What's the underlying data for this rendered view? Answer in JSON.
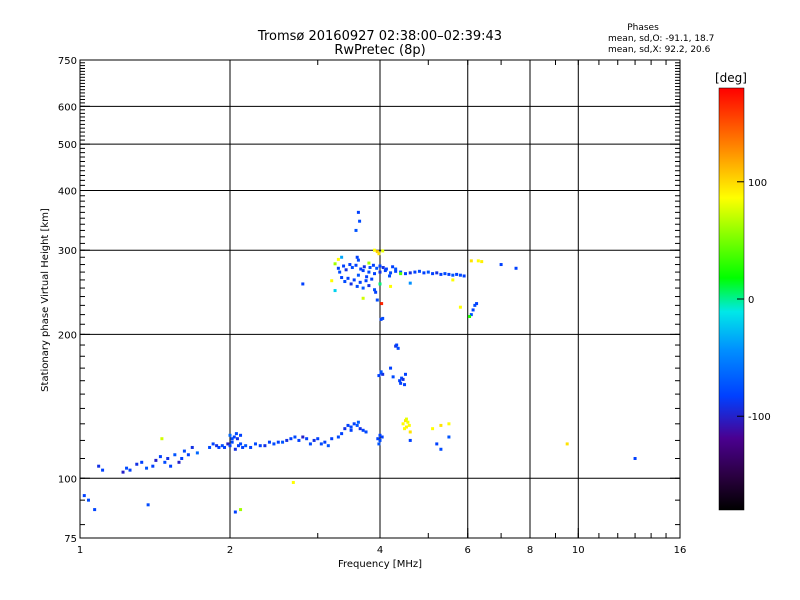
{
  "header": {
    "title_line1": "Tromsø 20160927 02:38:00–02:39:43",
    "title_line2": "RwPretec (8p)",
    "stats_title": "Phases",
    "stats_o": "mean, sd,O: -91.1, 18.7",
    "stats_x": "mean, sd,X:  92.2, 20.6"
  },
  "colorbar": {
    "label": "[deg]",
    "ticks": [
      {
        "v": 100,
        "label": "100"
      },
      {
        "v": 0,
        "label": "0"
      },
      {
        "v": -100,
        "label": "-100"
      }
    ],
    "range": [
      -180,
      180
    ]
  },
  "chart_data": {
    "type": "scatter",
    "title": "Tromsø 20160927 02:38:00–02:39:43",
    "subtitle": "RwPretec (8p)",
    "xlabel": "Frequency [MHz]",
    "ylabel": "Stationary phase Virtual Height [km]",
    "xscale": "log",
    "yscale": "log",
    "xlim": [
      1,
      16
    ],
    "ylim": [
      75,
      750
    ],
    "xticks": [
      {
        "v": 1,
        "label": "1"
      },
      {
        "v": 2,
        "label": "2"
      },
      {
        "v": 4,
        "label": "4"
      },
      {
        "v": 6,
        "label": "6"
      },
      {
        "v": 8,
        "label": "8"
      },
      {
        "v": 10,
        "label": "10"
      },
      {
        "v": 16,
        "label": "16"
      }
    ],
    "yticks": [
      {
        "v": 75,
        "label": "75"
      },
      {
        "v": 100,
        "label": "100"
      },
      {
        "v": 200,
        "label": "200"
      },
      {
        "v": 300,
        "label": "300"
      },
      {
        "v": 400,
        "label": "400"
      },
      {
        "v": 500,
        "label": "500"
      },
      {
        "v": 600,
        "label": "600"
      },
      {
        "v": 750,
        "label": "750"
      }
    ],
    "grid_x": [
      2,
      4,
      6,
      8,
      10
    ],
    "grid_y": [
      100,
      200,
      300,
      400,
      500,
      600
    ],
    "color_key": "phase [deg]",
    "points": [
      [
        1.02,
        92,
        -100
      ],
      [
        1.04,
        90,
        -95
      ],
      [
        1.07,
        86,
        -98
      ],
      [
        1.09,
        106,
        -105
      ],
      [
        1.11,
        104,
        -100
      ],
      [
        1.22,
        103,
        -110
      ],
      [
        1.24,
        105,
        -95
      ],
      [
        1.26,
        104,
        -100
      ],
      [
        1.3,
        107,
        -105
      ],
      [
        1.33,
        108,
        -100
      ],
      [
        1.36,
        105,
        -90
      ],
      [
        1.37,
        88,
        -95
      ],
      [
        1.4,
        106,
        -100
      ],
      [
        1.42,
        109,
        -110
      ],
      [
        1.45,
        111,
        -100
      ],
      [
        1.48,
        108,
        -95
      ],
      [
        1.5,
        110,
        -105
      ],
      [
        1.52,
        106,
        -100
      ],
      [
        1.55,
        112,
        -90
      ],
      [
        1.58,
        108,
        -110
      ],
      [
        1.6,
        110,
        -100
      ],
      [
        1.62,
        114,
        -95
      ],
      [
        1.65,
        112,
        -100
      ],
      [
        1.68,
        116,
        -105
      ],
      [
        1.72,
        113,
        -80
      ],
      [
        1.46,
        121,
        80
      ],
      [
        1.82,
        116,
        -95
      ],
      [
        1.85,
        118,
        -100
      ],
      [
        1.88,
        117,
        -105
      ],
      [
        1.9,
        116,
        -100
      ],
      [
        1.93,
        117,
        -95
      ],
      [
        1.95,
        116,
        -100
      ],
      [
        1.98,
        118,
        -110
      ],
      [
        2.0,
        117,
        -100
      ],
      [
        2.02,
        119,
        -95
      ],
      [
        2.05,
        115,
        -105
      ],
      [
        2.08,
        117,
        -100
      ],
      [
        2.1,
        118,
        -95
      ],
      [
        2.12,
        116,
        -100
      ],
      [
        2.15,
        117,
        -90
      ],
      [
        2.02,
        121,
        -95
      ],
      [
        2.04,
        122,
        -100
      ],
      [
        2.07,
        121,
        -105
      ],
      [
        2.1,
        123,
        -100
      ],
      [
        2.06,
        124,
        -95
      ],
      [
        2.0,
        123,
        -80
      ],
      [
        2.2,
        116,
        -100
      ],
      [
        2.25,
        118,
        -95
      ],
      [
        2.3,
        117,
        -100
      ],
      [
        2.35,
        117,
        -105
      ],
      [
        2.4,
        119,
        -100
      ],
      [
        2.45,
        118,
        -95
      ],
      [
        2.5,
        119,
        -100
      ],
      [
        2.55,
        119,
        -90
      ],
      [
        2.6,
        120,
        -105
      ],
      [
        2.65,
        121,
        -100
      ],
      [
        2.7,
        122,
        -95
      ],
      [
        2.75,
        120,
        -100
      ],
      [
        2.8,
        122,
        -110
      ],
      [
        2.85,
        121,
        -100
      ],
      [
        2.9,
        118,
        -95
      ],
      [
        2.95,
        120,
        -105
      ],
      [
        3.0,
        121,
        -100
      ],
      [
        3.05,
        118,
        -95
      ],
      [
        3.1,
        119,
        -100
      ],
      [
        3.15,
        117,
        -90
      ],
      [
        3.2,
        121,
        -100
      ],
      [
        3.3,
        122,
        -95
      ],
      [
        3.35,
        124,
        -100
      ],
      [
        3.4,
        127,
        -105
      ],
      [
        3.45,
        129,
        -100
      ],
      [
        3.5,
        128,
        -95
      ],
      [
        3.55,
        130,
        -100
      ],
      [
        3.6,
        129,
        -90
      ],
      [
        3.65,
        127,
        -105
      ],
      [
        3.7,
        126,
        -100
      ],
      [
        3.75,
        125,
        -95
      ],
      [
        3.62,
        131,
        -85
      ],
      [
        3.5,
        126,
        -100
      ],
      [
        2.05,
        85,
        -100
      ],
      [
        2.1,
        86,
        60
      ],
      [
        2.68,
        98,
        100
      ],
      [
        3.96,
        121,
        -100
      ],
      [
        4.0,
        120,
        -95
      ],
      [
        4.04,
        122,
        -100
      ],
      [
        3.98,
        118,
        -90
      ],
      [
        4.0,
        123,
        -100
      ],
      [
        3.98,
        164,
        -100
      ],
      [
        4.02,
        166,
        -95
      ],
      [
        4.05,
        165,
        -105
      ],
      [
        4.02,
        167,
        -90
      ],
      [
        4.3,
        189,
        -105
      ],
      [
        4.32,
        190,
        -100
      ],
      [
        4.35,
        187,
        -95
      ],
      [
        4.38,
        160,
        -100
      ],
      [
        4.42,
        162,
        -95
      ],
      [
        4.4,
        158,
        -100
      ],
      [
        4.45,
        161,
        -105
      ],
      [
        4.48,
        157,
        -100
      ],
      [
        4.25,
        163,
        -95
      ],
      [
        4.5,
        165,
        -100
      ],
      [
        4.02,
        215,
        -100
      ],
      [
        4.05,
        216,
        -95
      ],
      [
        4.03,
        232,
        170
      ],
      [
        4.2,
        170,
        -100
      ],
      [
        4.45,
        130,
        100
      ],
      [
        4.5,
        132,
        110
      ],
      [
        4.52,
        128,
        105
      ],
      [
        4.55,
        131,
        95
      ],
      [
        4.48,
        127,
        100
      ],
      [
        4.58,
        129,
        100
      ],
      [
        4.6,
        125,
        110
      ],
      [
        4.52,
        133,
        90
      ],
      [
        4.6,
        120,
        -100
      ],
      [
        5.1,
        127,
        100
      ],
      [
        5.3,
        129,
        110
      ],
      [
        5.5,
        130,
        100
      ],
      [
        5.2,
        118,
        -100
      ],
      [
        5.3,
        115,
        -95
      ],
      [
        5.5,
        122,
        -90
      ],
      [
        3.7,
        272,
        -100
      ],
      [
        3.8,
        270,
        -95
      ],
      [
        3.9,
        268,
        -100
      ],
      [
        4.0,
        270,
        -105
      ],
      [
        4.1,
        272,
        -100
      ],
      [
        4.2,
        269,
        -95
      ],
      [
        4.3,
        271,
        -100
      ],
      [
        4.4,
        270,
        -90
      ],
      [
        4.5,
        268,
        -100
      ],
      [
        4.6,
        269,
        -105
      ],
      [
        4.7,
        270,
        -100
      ],
      [
        4.8,
        271,
        -95
      ],
      [
        4.9,
        269,
        -100
      ],
      [
        5.0,
        270,
        -90
      ],
      [
        5.1,
        268,
        -100
      ],
      [
        5.2,
        269,
        -105
      ],
      [
        5.3,
        267,
        -100
      ],
      [
        5.4,
        268,
        -95
      ],
      [
        5.5,
        267,
        -100
      ],
      [
        5.6,
        266,
        -90
      ],
      [
        5.7,
        267,
        -100
      ],
      [
        5.8,
        266,
        -95
      ],
      [
        5.9,
        265,
        -100
      ],
      [
        3.35,
        263,
        -100
      ],
      [
        3.4,
        258,
        -95
      ],
      [
        3.45,
        262,
        -100
      ],
      [
        3.5,
        255,
        -105
      ],
      [
        3.55,
        260,
        -100
      ],
      [
        3.6,
        252,
        -95
      ],
      [
        3.65,
        257,
        -100
      ],
      [
        3.7,
        250,
        -90
      ],
      [
        3.75,
        259,
        -100
      ],
      [
        3.8,
        253,
        -105
      ],
      [
        3.85,
        261,
        -100
      ],
      [
        3.9,
        248,
        -95
      ],
      [
        3.3,
        275,
        -100
      ],
      [
        3.32,
        270,
        -95
      ],
      [
        3.38,
        278,
        -100
      ],
      [
        3.42,
        273,
        -105
      ],
      [
        3.48,
        280,
        -100
      ],
      [
        3.52,
        276,
        -95
      ],
      [
        3.58,
        279,
        -100
      ],
      [
        3.62,
        266,
        -90
      ],
      [
        3.66,
        274,
        -100
      ],
      [
        3.72,
        277,
        -105
      ],
      [
        3.76,
        264,
        -100
      ],
      [
        3.82,
        276,
        -95
      ],
      [
        3.88,
        279,
        -100
      ],
      [
        3.94,
        275,
        -90
      ],
      [
        4.0,
        278,
        -100
      ],
      [
        4.06,
        276,
        -105
      ],
      [
        4.12,
        274,
        -100
      ],
      [
        4.18,
        265,
        -95
      ],
      [
        4.24,
        277,
        -100
      ],
      [
        4.3,
        274,
        -90
      ],
      [
        3.62,
        360,
        -100
      ],
      [
        3.64,
        345,
        -95
      ],
      [
        3.58,
        330,
        -90
      ],
      [
        3.6,
        290,
        -100
      ],
      [
        3.62,
        286,
        -95
      ],
      [
        3.9,
        300,
        100
      ],
      [
        3.95,
        298,
        120
      ],
      [
        4.05,
        299,
        90
      ],
      [
        3.98,
        295,
        110
      ],
      [
        3.3,
        287,
        100
      ],
      [
        3.25,
        281,
        60
      ],
      [
        3.35,
        290,
        -50
      ],
      [
        3.2,
        259,
        100
      ],
      [
        3.25,
        247,
        -30
      ],
      [
        3.92,
        245,
        -100
      ],
      [
        3.95,
        236,
        -95
      ],
      [
        3.8,
        282,
        60
      ],
      [
        3.7,
        238,
        80
      ],
      [
        4.0,
        255,
        -10
      ],
      [
        4.2,
        252,
        100
      ],
      [
        4.4,
        268,
        30
      ],
      [
        4.6,
        256,
        -60
      ],
      [
        2.8,
        255,
        -100
      ],
      [
        6.1,
        285,
        110
      ],
      [
        6.3,
        285,
        100
      ],
      [
        6.4,
        284,
        105
      ],
      [
        7.0,
        280,
        -100
      ],
      [
        7.5,
        275,
        -100
      ],
      [
        6.15,
        225,
        -100
      ],
      [
        6.2,
        230,
        -95
      ],
      [
        6.25,
        232,
        -100
      ],
      [
        6.1,
        220,
        -90
      ],
      [
        6.05,
        218,
        10
      ],
      [
        5.8,
        228,
        100
      ],
      [
        5.6,
        260,
        100
      ],
      [
        9.5,
        118,
        110
      ],
      [
        13.0,
        110,
        -100
      ]
    ]
  }
}
